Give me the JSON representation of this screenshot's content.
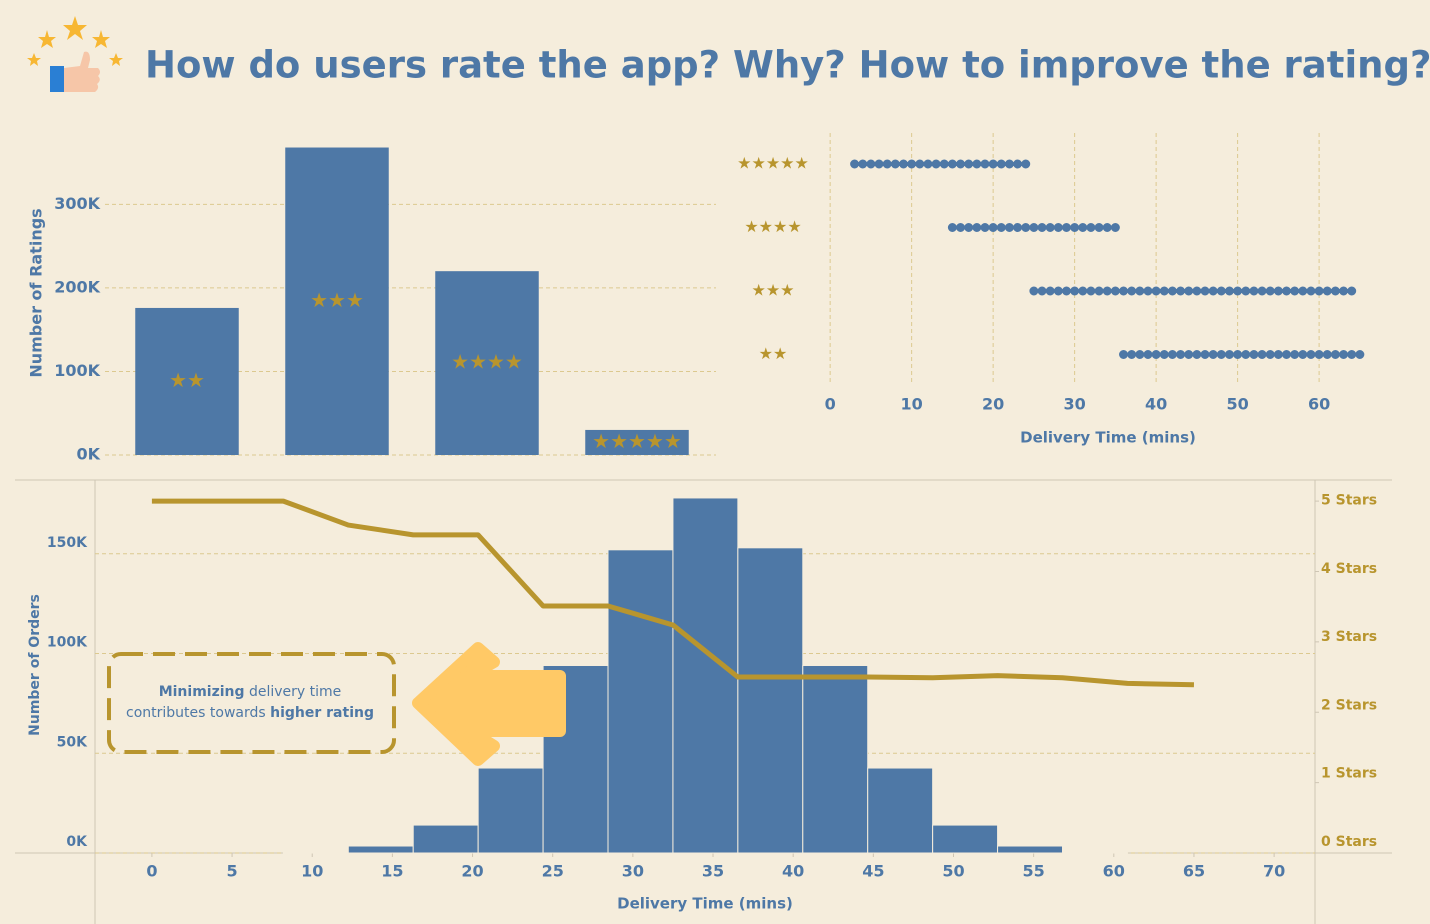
{
  "title": "How do users rate the app? Why? How to improve the rating?",
  "annotation": [
    [
      {
        "text": "Minimizing",
        "bold": true
      },
      {
        "text": " delivery time",
        "bold": false
      }
    ],
    [
      {
        "text": "contributes towards ",
        "bold": false
      },
      {
        "text": "higher rating",
        "bold": true
      }
    ]
  ],
  "chart_data": [
    {
      "type": "bar",
      "categories": [
        "★★",
        "★★★",
        "★★★★",
        "★★★★★"
      ],
      "values": [
        176000,
        368000,
        220000,
        30000
      ],
      "color": "#4e78a6",
      "label_color": "#b8952e",
      "ylim": [
        0,
        377000
      ],
      "yticks": [
        {
          "value": 0,
          "label": "0K"
        },
        {
          "value": 100000,
          "label": "100K"
        },
        {
          "value": 200000,
          "label": "200K"
        },
        {
          "value": 300000,
          "label": "300K"
        }
      ],
      "ylabel": "Number of Ratings",
      "grid": true
    },
    {
      "type": "strip",
      "categories": [
        "★★★★★",
        "★★★★",
        "★★★",
        "★★"
      ],
      "start": [
        3,
        15,
        25,
        36
      ],
      "end": [
        24,
        35,
        64,
        65
      ],
      "color": "#4e78a6",
      "label_color": "#b8952e",
      "xlim": [
        -1,
        66
      ],
      "xticks": [
        0,
        10,
        20,
        30,
        40,
        50,
        60
      ],
      "xlabel": "Delivery Time (mins)",
      "grid": true
    },
    {
      "type": "histogram",
      "bins": [
        8.2,
        12.25,
        16.3,
        20.35,
        24.4,
        28.45,
        32.5,
        36.55,
        40.6,
        44.65,
        48.7,
        52.75,
        56.8,
        60.85
      ],
      "values": [
        500,
        3500,
        14000,
        42600,
        94000,
        152000,
        178000,
        153000,
        94000,
        42600,
        14000,
        3500,
        500
      ],
      "color": "#4e78a6",
      "series": [
        {
          "x": [
            0,
            8.2,
            12.25,
            16.3,
            20.35,
            24.4,
            28.45,
            32.5,
            36.55,
            40.6,
            44.65,
            48.7,
            52.75,
            56.8,
            60.85,
            65
          ],
          "values": [
            5,
            5,
            4.66,
            4.52,
            4.52,
            3.51,
            3.51,
            3.24,
            2.5,
            2.5,
            2.5,
            2.49,
            2.52,
            2.49,
            2.41,
            2.39
          ],
          "color": "#b8952e",
          "axis": "y2"
        }
      ],
      "xlim": [
        -3.55,
        72.55
      ],
      "xticks": [
        0,
        5,
        10,
        15,
        20,
        25,
        30,
        35,
        40,
        45,
        50,
        55,
        60,
        65,
        70
      ],
      "ylim": [
        0,
        187000
      ],
      "yticks": [
        {
          "value": 0,
          "label": "0K"
        },
        {
          "value": 50000,
          "label": "50K"
        },
        {
          "value": 100000,
          "label": "100K"
        },
        {
          "value": 150000,
          "label": "150K"
        }
      ],
      "y2lim": [
        0,
        5.3
      ],
      "y2ticks": [
        {
          "value": 0,
          "label": "0 Stars"
        },
        {
          "value": 1,
          "label": "1 Stars"
        },
        {
          "value": 2,
          "label": "2 Stars"
        },
        {
          "value": 3,
          "label": "3 Stars"
        },
        {
          "value": 4,
          "label": "4 Stars"
        },
        {
          "value": 5,
          "label": "5 Stars"
        }
      ],
      "ylabel": "Number of Orders",
      "xlabel": "Delivery Time (mins)",
      "grid": true
    }
  ]
}
